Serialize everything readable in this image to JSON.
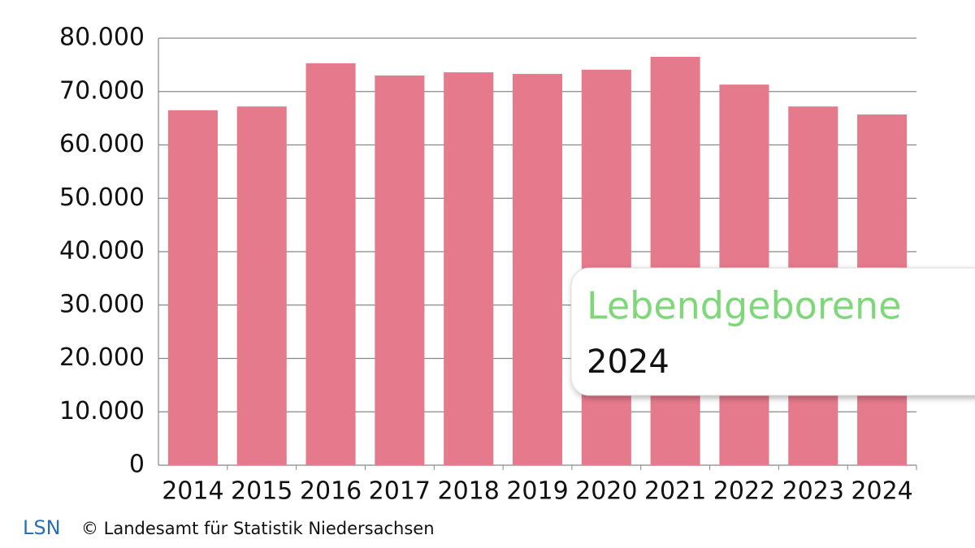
{
  "chart_data": {
    "type": "bar",
    "categories": [
      "2014",
      "2015",
      "2016",
      "2017",
      "2018",
      "2019",
      "2020",
      "2021",
      "2022",
      "2023",
      "2024"
    ],
    "values": [
      66500,
      67200,
      75300,
      73000,
      73600,
      73300,
      74100,
      76500,
      71300,
      67200,
      65700
    ],
    "color": "#e57a8c",
    "ylim": [
      0,
      80000
    ],
    "yticks": [
      0,
      {
        "value": 10000,
        "label": "10.000"
      },
      {
        "value": 20000,
        "label": "20.000"
      },
      {
        "value": 30000,
        "label": "30.000"
      },
      {
        "value": 40000,
        "label": "40.000"
      },
      {
        "value": 50000,
        "label": "50.000"
      },
      {
        "value": 60000,
        "label": "60.000"
      },
      {
        "value": 70000,
        "label": "70.000"
      },
      {
        "value": 80000,
        "label": "80.000"
      }
    ],
    "grid": true,
    "annotation": {
      "title": "Lebendgeborene",
      "subtitle": "2024"
    },
    "footer": {
      "logo": "LSN",
      "source": "© Landesamt für Statistik Niedersachsen"
    }
  }
}
